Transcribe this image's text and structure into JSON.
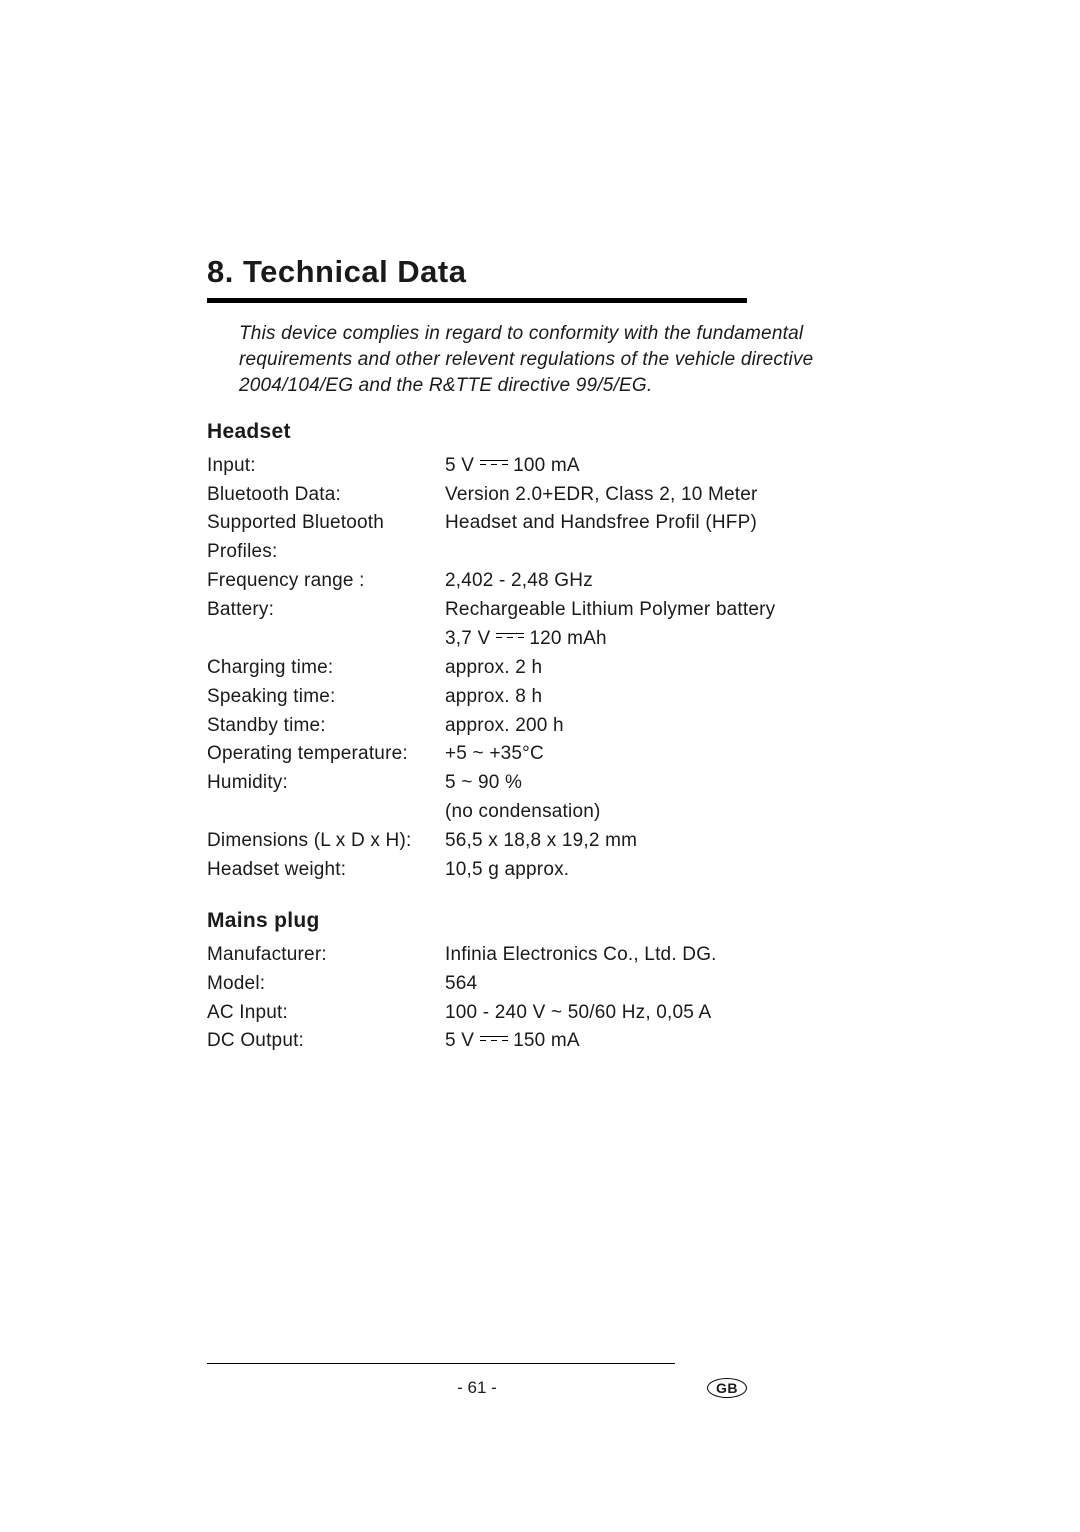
{
  "sectionNumber": "8.",
  "sectionTitle": "Technical Data",
  "compliance": "This device complies in regard to conformity with the fundamental requirements and other relevent regulations of the vehicle directive 2004/104/EG and the R&TTE directive 99/5/EG.",
  "headset": {
    "heading": "Headset",
    "rows": [
      {
        "label": "Input:",
        "value_pre": "5 V ",
        "dc": true,
        "value_post": " 100 mA"
      },
      {
        "label": "Bluetooth Data:",
        "value": "Version 2.0+EDR, Class 2, 10 Meter"
      },
      {
        "label": "Supported Bluetooth Profiles:",
        "value": "Headset and Handsfree Profil (HFP)"
      },
      {
        "label": "Frequency range :",
        "value": "2,402 - 2,48 GHz"
      },
      {
        "label": "Battery:",
        "value": "Rechargeable Lithium Polymer battery"
      },
      {
        "label": "",
        "value_pre": "3,7 V ",
        "dc": true,
        "value_post": " 120 mAh"
      },
      {
        "label": "Charging time:",
        "value": "approx. 2 h"
      },
      {
        "label": "Speaking time:",
        "value": "approx. 8 h"
      },
      {
        "label": "Standby time:",
        "value": "approx. 200 h"
      },
      {
        "label": "Operating temperature:",
        "value": "+5 ~ +35°C"
      },
      {
        "label": "Humidity:",
        "value": "5 ~ 90 %"
      },
      {
        "label": "",
        "value": "(no condensation)"
      },
      {
        "label": "Dimensions (L x D x H):",
        "value": "56,5 x 18,8 x 19,2 mm"
      },
      {
        "label": "Headset weight:",
        "value": "10,5 g approx."
      }
    ]
  },
  "mains": {
    "heading": "Mains plug",
    "rows": [
      {
        "label": "Manufacturer:",
        "value": "Infinia Electronics Co., Ltd. DG."
      },
      {
        "label": "Model:",
        "value": "564"
      },
      {
        "label": "AC Input:",
        "value": "100 - 240 V ~ 50/60 Hz, 0,05 A"
      },
      {
        "label": "DC Output:",
        "value_pre": "5 V ",
        "dc": true,
        "value_post": " 150 mA"
      }
    ]
  },
  "pageNumber": "- 61 -",
  "langBadge": "GB"
}
